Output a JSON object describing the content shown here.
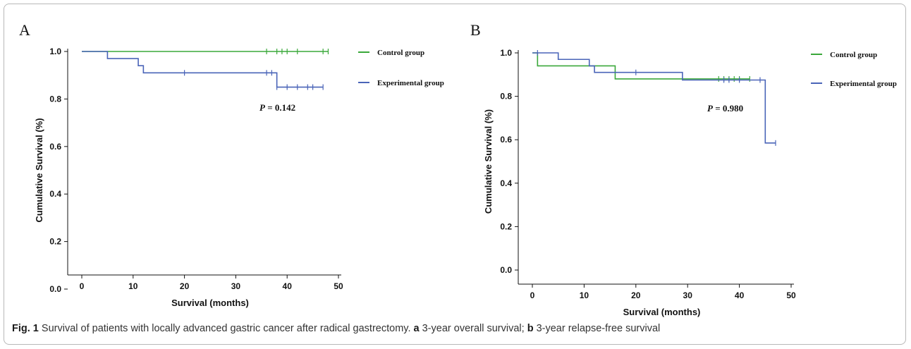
{
  "caption": {
    "fig_label": "Fig. 1",
    "text_1": " Survival of patients with locally advanced gastric cancer after radical gastrectomy. ",
    "a_label": "a",
    "text_2": " 3-year overall survival; ",
    "b_label": "b",
    "text_3": " 3-year relapse-free survival"
  },
  "colors": {
    "control": "#3aa83a",
    "experimental": "#4a64b8",
    "axis": "#111111"
  },
  "chart_data": [
    {
      "type": "line",
      "panel_label": "A",
      "xlabel": "Survival (months)",
      "ylabel": "Cumulative Survival (%)",
      "xlim": [
        0,
        50
      ],
      "ylim": [
        0,
        1.0
      ],
      "xticks": [
        0,
        10,
        20,
        30,
        40,
        50
      ],
      "yticks": [
        0.0,
        0.2,
        0.4,
        0.6,
        0.8,
        1.0
      ],
      "ytick_labels": [
        "0.0",
        "0.2",
        "0.4",
        "0.6",
        "0.8",
        "1.0"
      ],
      "annotation": {
        "p_label": "P",
        "p_text": " = 0.142"
      },
      "legend_position": "right",
      "series": [
        {
          "name": "Control group",
          "color_key": "control",
          "steps": [
            [
              0,
              1.0
            ],
            [
              48,
              1.0
            ]
          ],
          "censored": [
            [
              36,
              1.0
            ],
            [
              38,
              1.0
            ],
            [
              39,
              1.0
            ],
            [
              40,
              1.0
            ],
            [
              42,
              1.0
            ],
            [
              47,
              1.0
            ],
            [
              48,
              1.0
            ]
          ]
        },
        {
          "name": "Experimental group",
          "color_key": "experimental",
          "steps": [
            [
              0,
              1.0
            ],
            [
              5,
              0.97
            ],
            [
              11,
              0.94
            ],
            [
              12,
              0.91
            ],
            [
              38,
              0.85
            ],
            [
              47,
              0.85
            ]
          ],
          "censored": [
            [
              20,
              0.91
            ],
            [
              36,
              0.91
            ],
            [
              37,
              0.91
            ],
            [
              38,
              0.85
            ],
            [
              40,
              0.85
            ],
            [
              42,
              0.85
            ],
            [
              44,
              0.85
            ],
            [
              45,
              0.85
            ],
            [
              47,
              0.85
            ]
          ]
        }
      ]
    },
    {
      "type": "line",
      "panel_label": "B",
      "xlabel": "Survival (months)",
      "ylabel": "Cumulative Survival (%)",
      "xlim": [
        0,
        50
      ],
      "ylim": [
        0,
        1.0
      ],
      "xticks": [
        0,
        10,
        20,
        30,
        40,
        50
      ],
      "yticks": [
        0.0,
        0.2,
        0.4,
        0.6,
        0.8,
        1.0
      ],
      "ytick_labels": [
        "0.0",
        "0.2",
        "0.4",
        "0.6",
        "0.8",
        "1.0"
      ],
      "annotation": {
        "p_label": "P",
        "p_text": " = 0.980"
      },
      "legend_position": "right",
      "series": [
        {
          "name": "Control group",
          "color_key": "control",
          "steps": [
            [
              0,
              1.0
            ],
            [
              1,
              0.94
            ],
            [
              16,
              0.88
            ],
            [
              42,
              0.88
            ]
          ],
          "censored": [
            [
              36,
              0.88
            ],
            [
              37,
              0.88
            ],
            [
              38,
              0.88
            ],
            [
              39,
              0.88
            ],
            [
              40,
              0.88
            ],
            [
              42,
              0.88
            ]
          ]
        },
        {
          "name": "Experimental group",
          "color_key": "experimental",
          "steps": [
            [
              0,
              1.0
            ],
            [
              5,
              0.97
            ],
            [
              11,
              0.94
            ],
            [
              12,
              0.91
            ],
            [
              29,
              0.875
            ],
            [
              45,
              0.585
            ],
            [
              47,
              0.585
            ]
          ],
          "censored": [
            [
              1,
              1.0
            ],
            [
              20,
              0.91
            ],
            [
              37,
              0.875
            ],
            [
              38,
              0.875
            ],
            [
              40,
              0.875
            ],
            [
              44,
              0.875
            ],
            [
              47,
              0.585
            ]
          ]
        }
      ]
    }
  ]
}
